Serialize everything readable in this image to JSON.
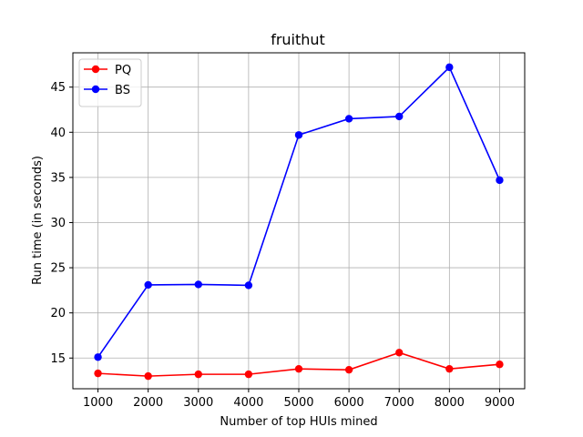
{
  "chart_data": {
    "type": "line",
    "title": "fruithut",
    "xlabel": "Number of top HUIs mined",
    "ylabel": "Run time (in seconds)",
    "x": [
      1000,
      2000,
      3000,
      4000,
      5000,
      6000,
      7000,
      8000,
      9000
    ],
    "xticks": [
      1000,
      2000,
      3000,
      4000,
      5000,
      6000,
      7000,
      8000,
      9000
    ],
    "yticks": [
      15,
      20,
      25,
      30,
      35,
      40,
      45
    ],
    "xlim": [
      500,
      9500
    ],
    "ylim": [
      11.6,
      48.8
    ],
    "grid": true,
    "legend_position": "top-left",
    "series": [
      {
        "name": "PQ",
        "color": "#ff0000",
        "values": [
          13.3,
          13.0,
          13.2,
          13.2,
          13.8,
          13.7,
          15.6,
          13.8,
          14.3
        ]
      },
      {
        "name": "BS",
        "color": "#0000ff",
        "values": [
          15.1,
          23.1,
          23.15,
          23.05,
          39.7,
          41.5,
          41.75,
          47.2,
          34.7
        ]
      }
    ]
  }
}
